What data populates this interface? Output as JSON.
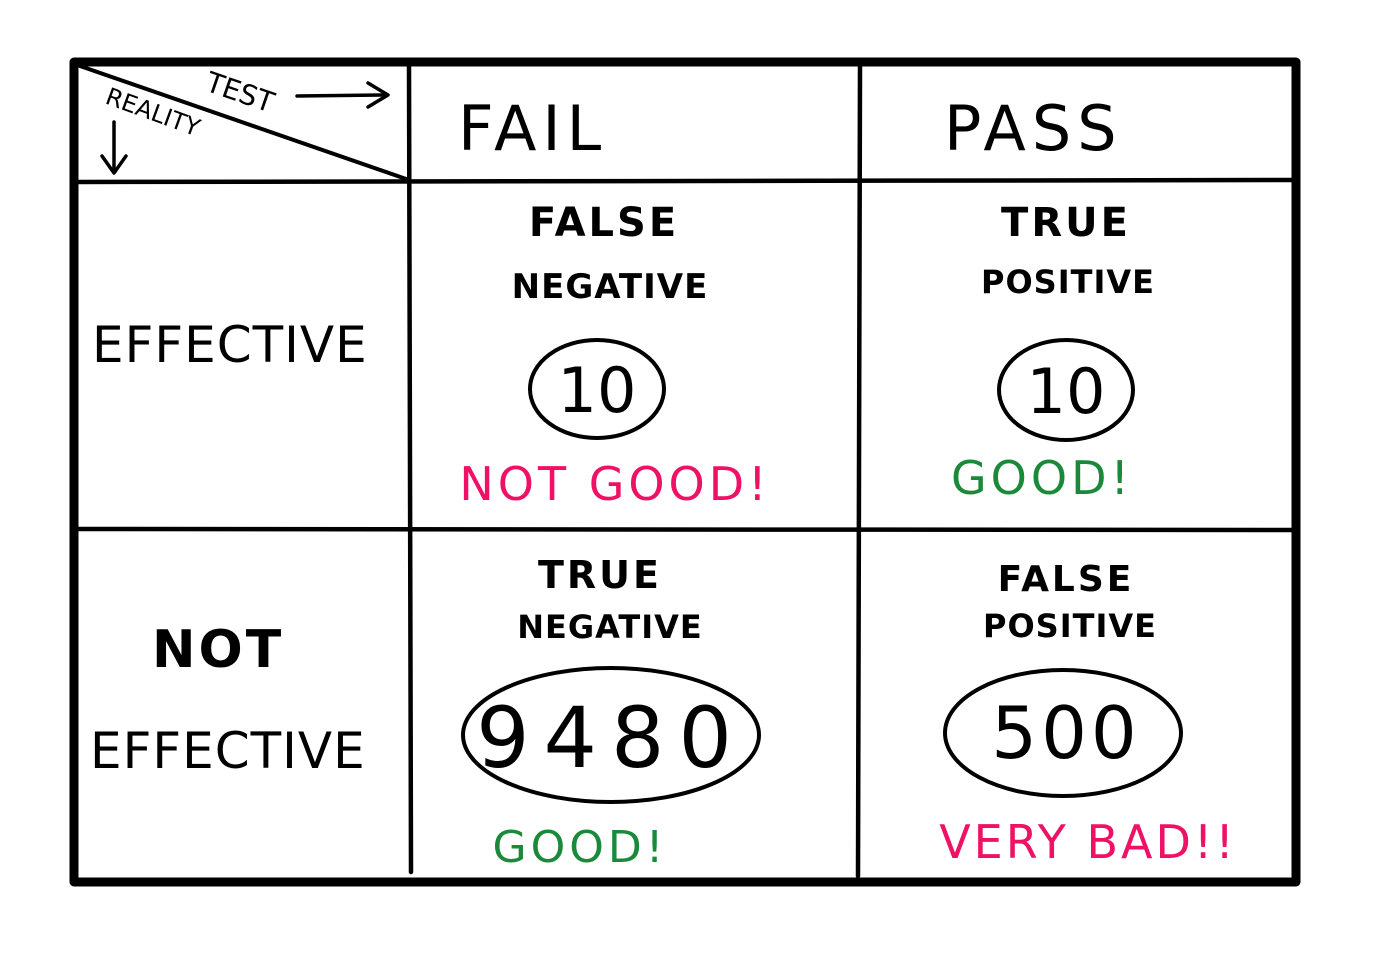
{
  "header": {
    "corner_top": "TEST",
    "corner_side": "REALITY",
    "col_fail": "FAIL",
    "col_pass": "PASS"
  },
  "rows": {
    "effective": "EFFECTIVE",
    "not_effective_line1": "NOT",
    "not_effective_line2": "EFFECTIVE"
  },
  "cells": {
    "false_negative": {
      "line1": "FALSE",
      "line2": "NEGATIVE",
      "count": "10",
      "verdict": "NOT GOOD!"
    },
    "true_positive": {
      "line1": "TRUE",
      "line2": "POSITIVE",
      "count": "10",
      "verdict": "GOOD!"
    },
    "true_negative": {
      "line1": "TRUE",
      "line2": "NEGATIVE",
      "count": "9480",
      "verdict": "GOOD!"
    },
    "false_positive": {
      "line1": "FALSE",
      "line2": "POSITIVE",
      "count": "500",
      "verdict": "VERY BAD!!"
    }
  },
  "colors": {
    "ink": "#000000",
    "bad": "#ee1166",
    "good": "#1a8a3a",
    "paper": "#ffffff"
  }
}
